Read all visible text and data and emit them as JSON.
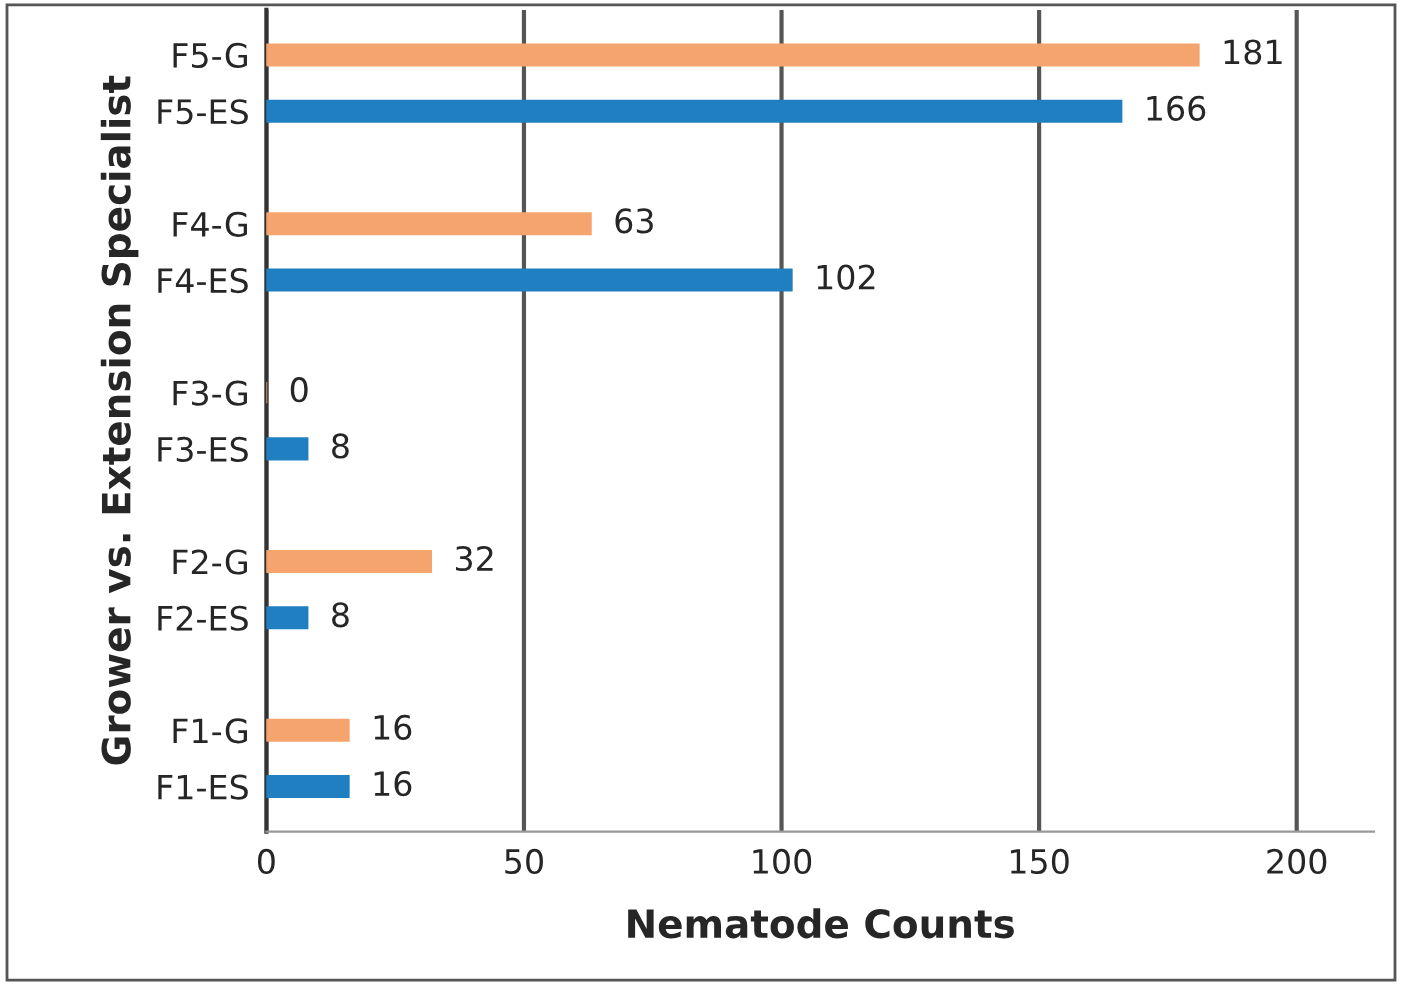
{
  "chart_data": {
    "type": "bar",
    "orientation": "horizontal",
    "xlabel": "Nematode Counts",
    "ylabel": "Grower vs. Extension Specialist",
    "categories": [
      "F5-G",
      "F5-ES",
      "F4-G",
      "F4-ES",
      "F3-G",
      "F3-ES",
      "F2-G",
      "F2-ES",
      "F1-G",
      "F1-ES"
    ],
    "values": [
      181,
      166,
      63,
      102,
      0,
      8,
      32,
      8,
      16,
      16
    ],
    "colors": [
      "#f4a46c",
      "#1f7fc1",
      "#f4a46c",
      "#1f7fc1",
      "#f4a46c",
      "#1f7fc1",
      "#f4a46c",
      "#1f7fc1",
      "#f4a46c",
      "#1f7fc1"
    ],
    "xlim": [
      0,
      215
    ],
    "xticks": [
      0,
      50,
      100,
      150,
      200
    ],
    "grid": "x",
    "data_labels": true
  }
}
